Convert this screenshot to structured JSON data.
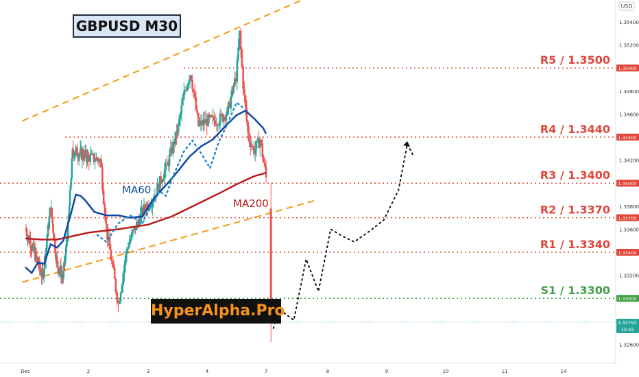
{
  "chart_data": {
    "type": "candlestick",
    "symbol": "GBPUSD M30",
    "watermark": "HyperAlpha.Pro",
    "currency": "USD",
    "ylim": [
      1.3245,
      1.3565
    ],
    "y_ticks": [
      "1.35400",
      "1.35200",
      "1.34800",
      "1.34600",
      "1.34200",
      "1.33800",
      "1.33600",
      "1.33200",
      "1.32600"
    ],
    "x_ticks": [
      "Dec",
      "2",
      "3",
      "4",
      "7",
      "8",
      "9",
      "10",
      "11",
      "14"
    ],
    "x_tick_positions": [
      0,
      2,
      3,
      4,
      5,
      6,
      7,
      8,
      9,
      10
    ],
    "levels": [
      {
        "label": "R5 / 1.3500",
        "price": 1.35,
        "tag": "1.35000",
        "color": "#e0463b"
      },
      {
        "label": "R4 / 1.3440",
        "price": 1.344,
        "tag": "1.34400",
        "color": "#e0463b"
      },
      {
        "label": "R3 / 1.3400",
        "price": 1.34,
        "tag": "1.34000",
        "color": "#e0463b"
      },
      {
        "label": "R2 / 1.3370",
        "price": 1.337,
        "tag": "1.33700",
        "color": "#e0463b"
      },
      {
        "label": "R1 / 1.3340",
        "price": 1.334,
        "tag": "1.33400",
        "color": "#e0463b"
      },
      {
        "label": "S1 / 1.3300",
        "price": 1.33,
        "tag": "1.33000",
        "color": "#43a047"
      }
    ],
    "last_price": {
      "value": "1.32793",
      "time": "10:03",
      "color": "#26a69a"
    },
    "ma_labels": {
      "ma60": "MA60",
      "ma200": "MA200"
    },
    "colors": {
      "up": "#26a69a",
      "down": "#ef5350",
      "ma60": "#0d47a1",
      "ma200": "#b71c1c",
      "channel": "#f39c12",
      "projection": "#111111",
      "dotted_blue": "#1e88c8"
    },
    "channel_upper": [
      [
        -0.05,
        1.3454
      ],
      [
        5.8,
        1.3564
      ]
    ],
    "channel_lower": [
      [
        -0.05,
        1.3314
      ],
      [
        5.8,
        1.3385
      ]
    ],
    "ma60": [
      [
        0,
        1.3327
      ],
      [
        0.2,
        1.3322
      ],
      [
        0.4,
        1.3331
      ],
      [
        0.6,
        1.333
      ],
      [
        0.8,
        1.3347
      ],
      [
        1.0,
        1.3344
      ],
      [
        1.2,
        1.335
      ],
      [
        1.45,
        1.3374
      ],
      [
        1.6,
        1.339
      ],
      [
        1.75,
        1.3389
      ],
      [
        1.9,
        1.3385
      ],
      [
        2.1,
        1.3375
      ],
      [
        2.3,
        1.3372
      ],
      [
        2.5,
        1.3372
      ],
      [
        2.7,
        1.337
      ],
      [
        2.9,
        1.3371
      ],
      [
        3.1,
        1.3387
      ],
      [
        3.3,
        1.3398
      ],
      [
        3.5,
        1.341
      ],
      [
        3.7,
        1.3423
      ],
      [
        3.9,
        1.3432
      ],
      [
        4.1,
        1.3438
      ],
      [
        4.3,
        1.3449
      ],
      [
        4.5,
        1.3459
      ],
      [
        4.65,
        1.3463
      ],
      [
        4.8,
        1.3456
      ],
      [
        4.95,
        1.3448
      ],
      [
        5.0,
        1.3443
      ]
    ],
    "ma200": [
      [
        0,
        1.3352
      ],
      [
        0.5,
        1.3351
      ],
      [
        1.0,
        1.3351
      ],
      [
        1.5,
        1.3354
      ],
      [
        2.0,
        1.3357
      ],
      [
        2.5,
        1.336
      ],
      [
        3.0,
        1.3364
      ],
      [
        3.4,
        1.3371
      ],
      [
        3.8,
        1.3381
      ],
      [
        4.2,
        1.3391
      ],
      [
        4.5,
        1.3399
      ],
      [
        4.8,
        1.3406
      ],
      [
        5.0,
        1.3409
      ]
    ],
    "dotted_blue": [
      [
        2.15,
        1.3355
      ],
      [
        2.3,
        1.3349
      ],
      [
        2.5,
        1.3365
      ],
      [
        2.7,
        1.3372
      ],
      [
        2.9,
        1.3365
      ],
      [
        3.05,
        1.3381
      ],
      [
        3.2,
        1.3393
      ],
      [
        3.3,
        1.3389
      ],
      [
        3.45,
        1.3409
      ],
      [
        3.6,
        1.3427
      ],
      [
        3.75,
        1.3437
      ],
      [
        3.9,
        1.3426
      ],
      [
        4.05,
        1.3413
      ],
      [
        4.2,
        1.3436
      ],
      [
        4.35,
        1.3452
      ],
      [
        4.5,
        1.347
      ],
      [
        4.6,
        1.3466
      ]
    ],
    "projection": [
      [
        5.12,
        1.3274
      ],
      [
        5.2,
        1.3289
      ],
      [
        5.3,
        1.3287
      ],
      [
        5.45,
        1.3281
      ],
      [
        5.65,
        1.3334
      ],
      [
        5.85,
        1.3306
      ],
      [
        6.05,
        1.336
      ],
      [
        6.25,
        1.3354
      ],
      [
        6.45,
        1.3349
      ],
      [
        6.7,
        1.3358
      ],
      [
        6.95,
        1.3368
      ],
      [
        7.2,
        1.3394
      ],
      [
        7.35,
        1.3434
      ],
      [
        7.45,
        1.3424
      ]
    ],
    "candles_range": [
      0,
      5.0
    ],
    "gap_close": [
      1.34,
      1.3279
    ]
  }
}
